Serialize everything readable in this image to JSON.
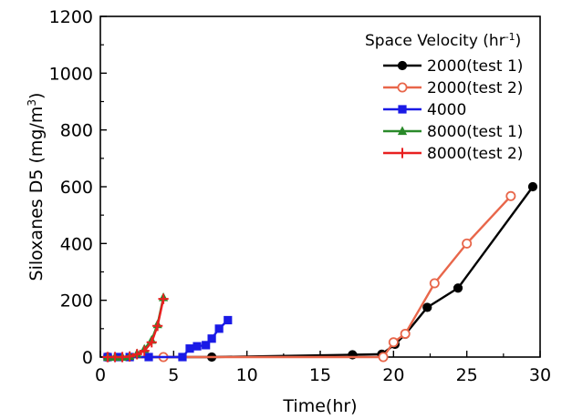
{
  "chart_data": {
    "type": "line",
    "xlabel": "Time(hr)",
    "ylabel_prefix": "Siloxanes D5 (mg/m",
    "ylabel_sup": "3",
    "ylabel_suffix": ")",
    "xlim": [
      0,
      30
    ],
    "ylim": [
      0,
      1200
    ],
    "xticks": [
      0,
      5,
      10,
      15,
      20,
      25,
      30
    ],
    "yticks": [
      0,
      200,
      400,
      600,
      800,
      1000,
      1200
    ],
    "grid": false,
    "legend": {
      "title_prefix": "Space Velocity (hr",
      "title_sup": "-1",
      "title_suffix": ")",
      "placement": "top-right"
    },
    "series": [
      {
        "name": "2000(test 1)",
        "color": "#000000",
        "marker": "filled-circle",
        "points": [
          [
            0.5,
            0
          ],
          [
            7.6,
            0
          ],
          [
            17.2,
            8
          ],
          [
            19.2,
            10
          ],
          [
            20.1,
            45
          ],
          [
            20.8,
            80
          ],
          [
            22.3,
            175
          ],
          [
            24.4,
            243
          ],
          [
            29.5,
            600
          ]
        ]
      },
      {
        "name": "2000(test 2)",
        "color": "#e8664a",
        "marker": "open-circle",
        "points": [
          [
            0.5,
            0
          ],
          [
            4.3,
            0
          ],
          [
            19.3,
            0
          ],
          [
            20.0,
            52
          ],
          [
            20.8,
            82
          ],
          [
            22.8,
            260
          ],
          [
            25.0,
            400
          ],
          [
            28.0,
            567
          ]
        ]
      },
      {
        "name": "4000",
        "color": "#1a1ae6",
        "marker": "filled-square",
        "points": [
          [
            0.5,
            0
          ],
          [
            1.2,
            0
          ],
          [
            2.0,
            0
          ],
          [
            3.3,
            0
          ],
          [
            5.6,
            0
          ],
          [
            6.1,
            30
          ],
          [
            6.6,
            38
          ],
          [
            7.2,
            42
          ],
          [
            7.6,
            65
          ],
          [
            8.1,
            100
          ],
          [
            8.7,
            130
          ]
        ]
      },
      {
        "name": "8000(test 1)",
        "color": "#2a8a2a",
        "marker": "filled-triangle",
        "points": [
          [
            0.5,
            0
          ],
          [
            1.0,
            0
          ],
          [
            1.5,
            0
          ],
          [
            2.0,
            3
          ],
          [
            2.5,
            12
          ],
          [
            3.0,
            28
          ],
          [
            3.5,
            60
          ],
          [
            3.9,
            115
          ],
          [
            4.3,
            210
          ]
        ]
      },
      {
        "name": "8000(test 2)",
        "color": "#e82020",
        "marker": "plus",
        "points": [
          [
            0.5,
            0
          ],
          [
            1.0,
            0
          ],
          [
            1.5,
            0
          ],
          [
            2.0,
            2
          ],
          [
            2.5,
            10
          ],
          [
            3.0,
            22
          ],
          [
            3.5,
            52
          ],
          [
            3.9,
            110
          ],
          [
            4.3,
            205
          ]
        ]
      }
    ]
  }
}
